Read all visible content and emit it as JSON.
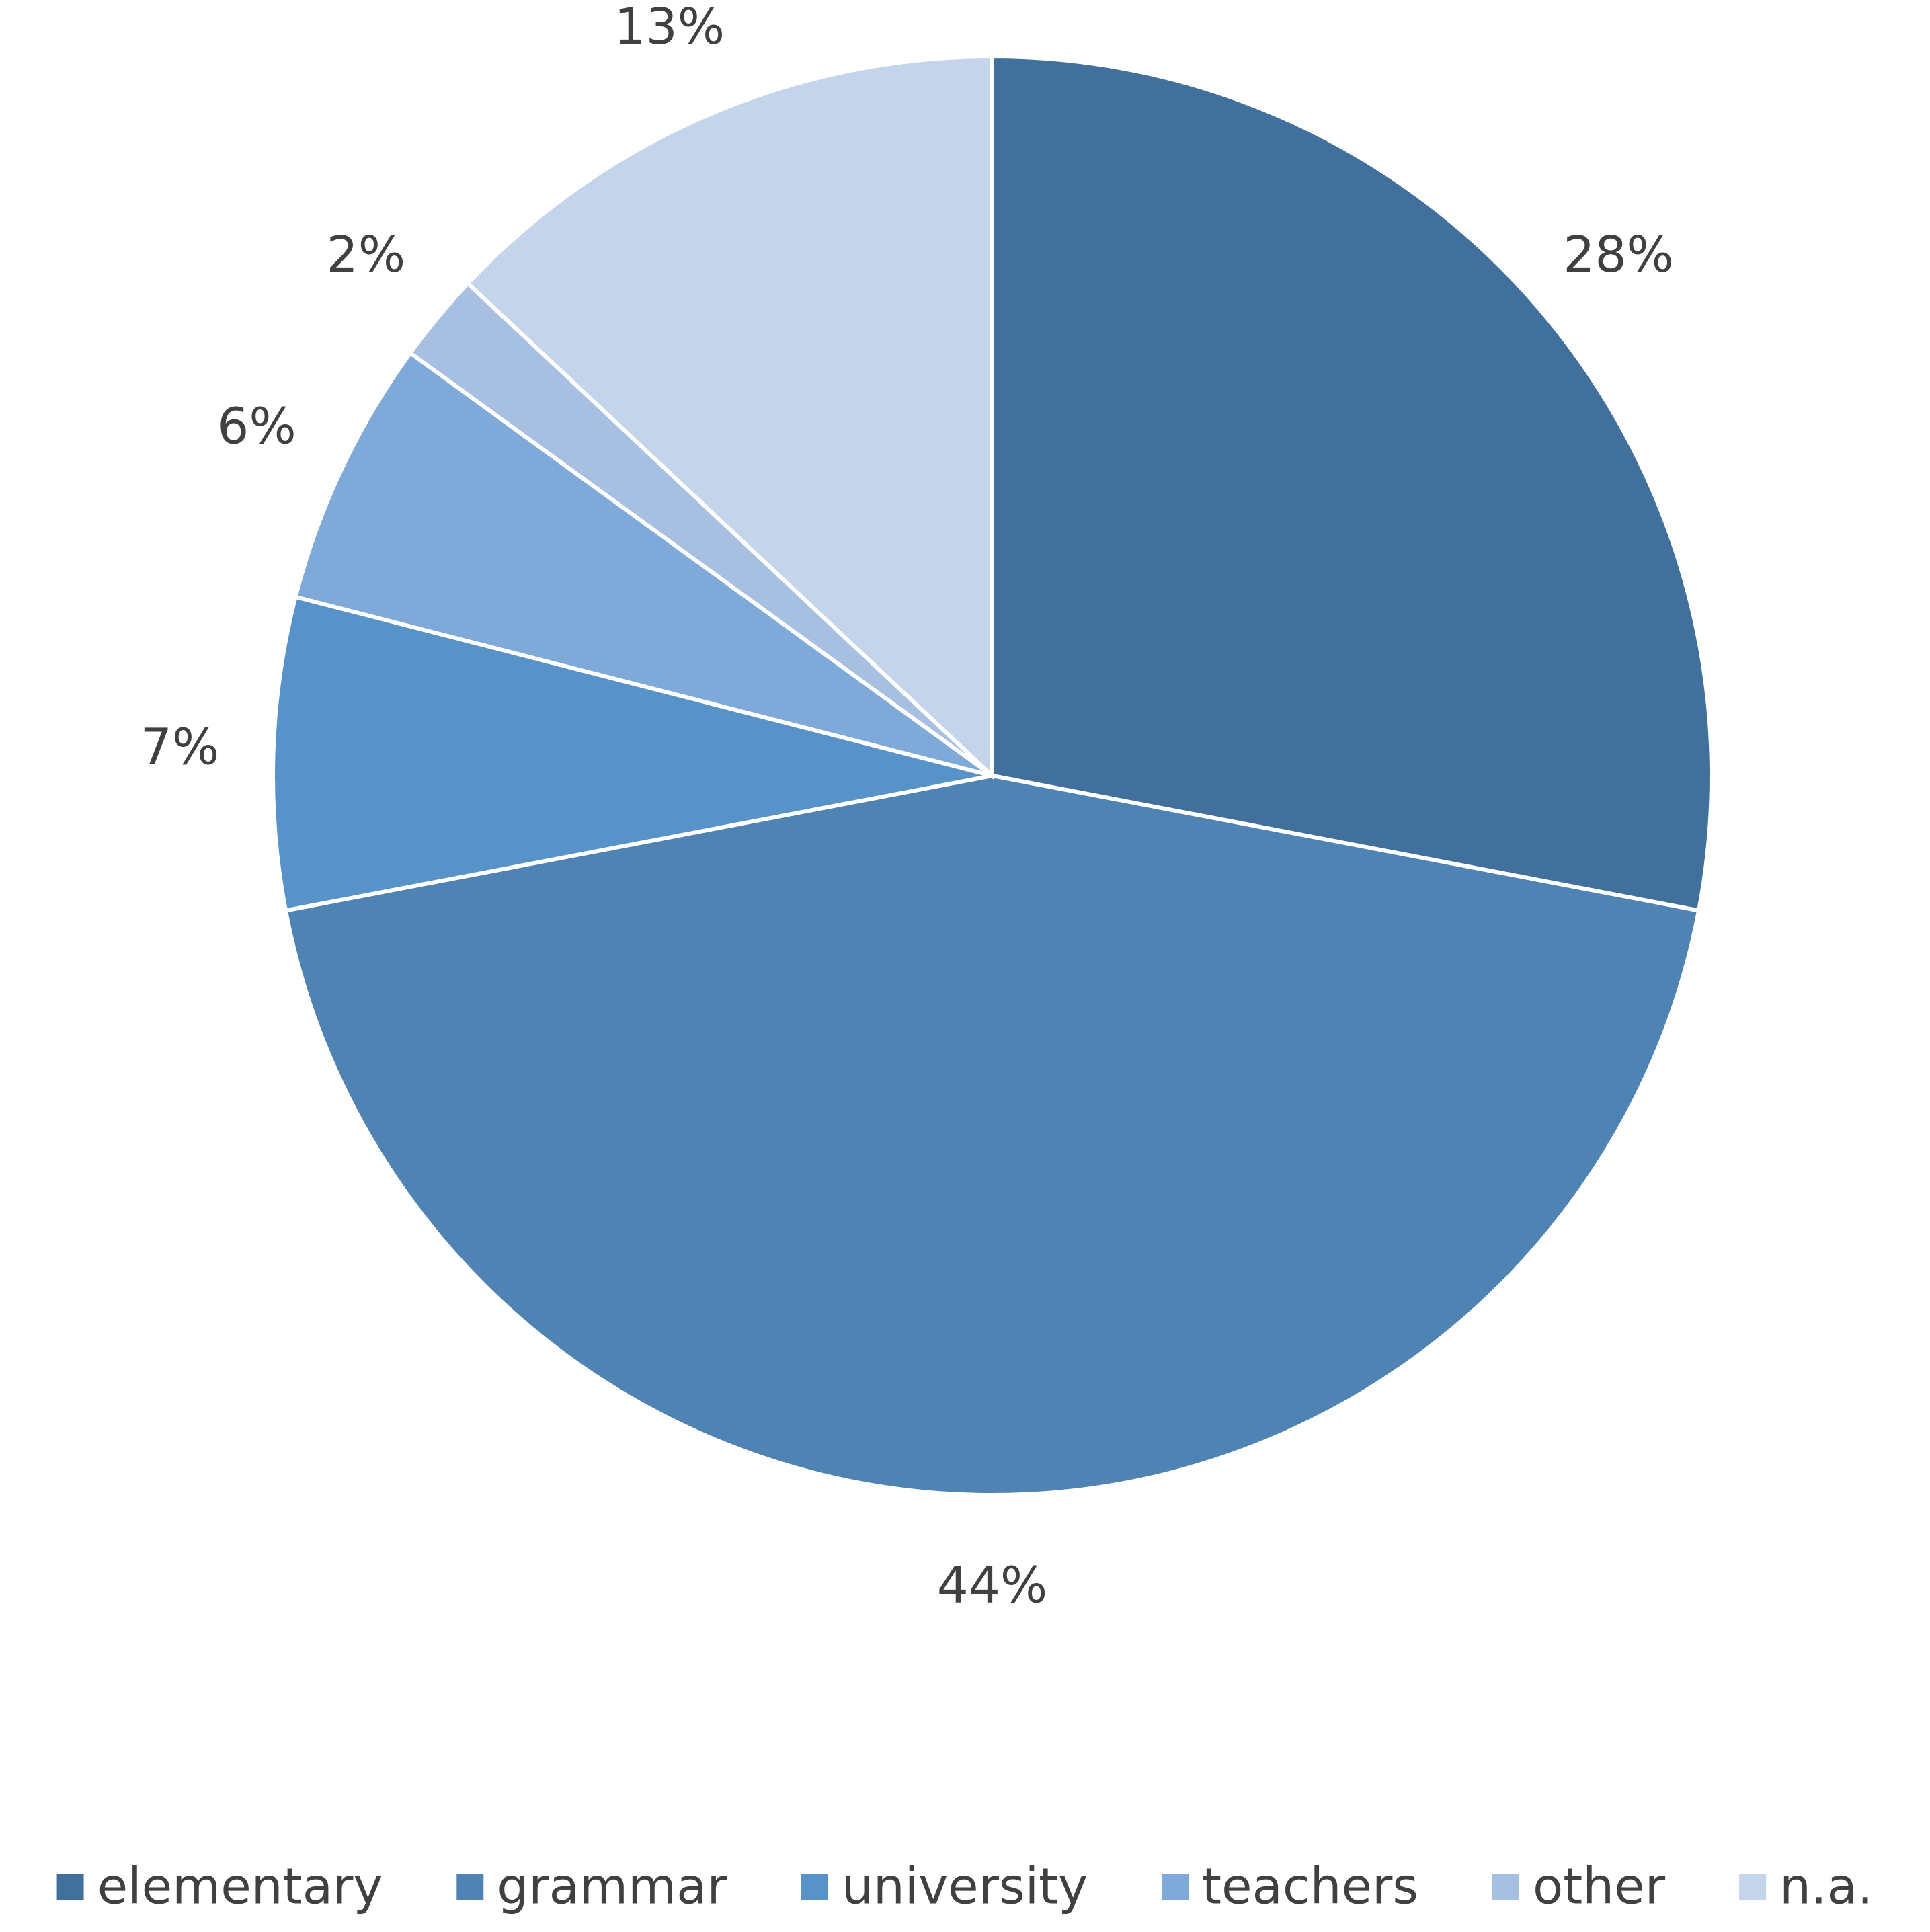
{
  "chart_data": {
    "type": "pie",
    "categories": [
      "elementary",
      "grammar",
      "university",
      "teachers",
      "other",
      "n.a."
    ],
    "values": [
      28,
      44,
      7,
      6,
      2,
      13
    ],
    "value_labels": [
      "28%",
      "44%",
      "7%",
      "6%",
      "2%",
      "13%"
    ],
    "colors": [
      "#41709c",
      "#4e83b4",
      "#5793c9",
      "#7ea9d8",
      "#a7c0e2",
      "#c4d4ea"
    ],
    "legend": "bottom"
  }
}
